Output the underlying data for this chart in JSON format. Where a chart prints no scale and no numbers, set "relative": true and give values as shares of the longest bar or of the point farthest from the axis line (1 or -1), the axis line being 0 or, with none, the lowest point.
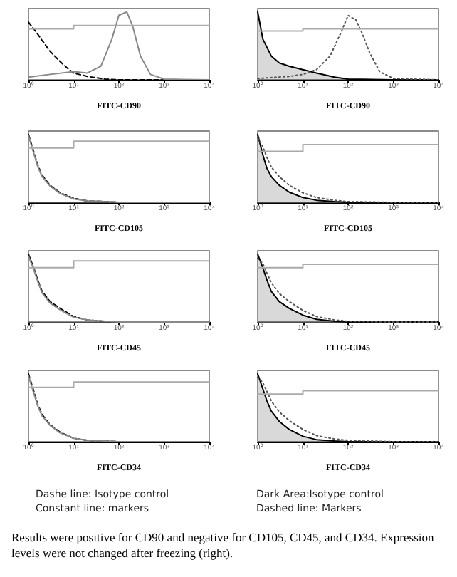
{
  "chart_data": [
    {
      "type": "line",
      "relative": true,
      "log": "x",
      "xlabel": "FITC-CD90",
      "xlim": [
        1,
        10000
      ],
      "xticks": [
        {
          "value": 1,
          "label": "10⁰"
        },
        {
          "value": 10,
          "label": "10¹"
        },
        {
          "value": 100,
          "label": "10²"
        },
        {
          "value": 1000,
          "label": "10³"
        },
        {
          "value": 10000,
          "label": "10⁴"
        }
      ],
      "series": [
        {
          "color": "#000000",
          "line_style": "dashed",
          "x": [
            1,
            1.5,
            2,
            3,
            5,
            7,
            10,
            20,
            50,
            100,
            1000,
            10000
          ],
          "values": [
            0.85,
            0.7,
            0.58,
            0.42,
            0.27,
            0.18,
            0.1,
            0.05,
            0.01,
            0,
            0,
            0
          ]
        },
        {
          "color": "#888888",
          "line_style": "solid",
          "x": [
            1,
            3,
            10,
            20,
            40,
            70,
            100,
            150,
            200,
            300,
            500,
            1000,
            10000
          ],
          "values": [
            0.04,
            0.08,
            0.12,
            0.1,
            0.2,
            0.6,
            0.95,
            1,
            0.8,
            0.35,
            0.08,
            0.01,
            0
          ]
        },
        {
          "color": "#aaaaaa",
          "line_style": "solid",
          "x": [
            1,
            10,
            10,
            10000
          ],
          "values": [
            0.75,
            0.75,
            0.8,
            0.8
          ]
        }
      ]
    },
    {
      "type": "line",
      "relative": true,
      "log": "x",
      "xlabel": "FITC-CD90",
      "xlim": [
        1,
        10000
      ],
      "xticks": [
        {
          "value": 1,
          "label": "10⁰"
        },
        {
          "value": 10,
          "label": "10¹"
        },
        {
          "value": 100,
          "label": "10²"
        },
        {
          "value": 1000,
          "label": "10³"
        },
        {
          "value": 10000,
          "label": "10⁴"
        }
      ],
      "series": [
        {
          "type": "area",
          "color": "#000000",
          "line_style": "solid",
          "x": [
            1,
            1.3,
            2,
            3,
            5,
            10,
            20,
            50,
            100,
            1000,
            10000
          ],
          "values": [
            1,
            0.6,
            0.35,
            0.25,
            0.2,
            0.15,
            0.1,
            0.04,
            0.01,
            0,
            0
          ]
        },
        {
          "color": "#555555",
          "line_style": "dotted",
          "x": [
            1,
            5,
            10,
            20,
            40,
            70,
            100,
            150,
            200,
            300,
            500,
            1000,
            10000
          ],
          "values": [
            0.02,
            0.05,
            0.08,
            0.15,
            0.35,
            0.7,
            0.95,
            0.88,
            0.7,
            0.4,
            0.12,
            0.02,
            0
          ]
        },
        {
          "color": "#aaaaaa",
          "line_style": "solid",
          "x": [
            1,
            10,
            10,
            10000
          ],
          "values": [
            0.72,
            0.72,
            0.75,
            0.75
          ]
        }
      ]
    },
    {
      "type": "line",
      "relative": true,
      "log": "x",
      "xlabel": "FITC-CD105",
      "xlim": [
        1,
        10000
      ],
      "xticks": [
        {
          "value": 1,
          "label": "10⁰"
        },
        {
          "value": 10,
          "label": "10¹"
        },
        {
          "value": 100,
          "label": "10²"
        },
        {
          "value": 1000,
          "label": "10³"
        },
        {
          "value": 10000,
          "label": "10⁴"
        }
      ],
      "series": [
        {
          "color": "#000000",
          "line_style": "dashed",
          "x": [
            1,
            1.3,
            1.6,
            2,
            3,
            5,
            10,
            20,
            50,
            100,
            1000,
            10000
          ],
          "values": [
            1,
            0.75,
            0.55,
            0.4,
            0.25,
            0.14,
            0.06,
            0.02,
            0.01,
            0,
            0,
            0
          ]
        },
        {
          "color": "#888888",
          "line_style": "solid",
          "x": [
            1,
            1.3,
            1.6,
            2,
            3,
            5,
            10,
            20,
            50,
            100,
            1000,
            10000
          ],
          "values": [
            0.98,
            0.73,
            0.53,
            0.38,
            0.24,
            0.13,
            0.05,
            0.02,
            0.01,
            0,
            0,
            0
          ]
        },
        {
          "color": "#aaaaaa",
          "line_style": "solid",
          "x": [
            1,
            10,
            10,
            10000
          ],
          "values": [
            0.8,
            0.8,
            0.9,
            0.9
          ]
        }
      ]
    },
    {
      "type": "line",
      "relative": true,
      "log": "x",
      "xlabel": "FITC-CD105",
      "xlim": [
        1,
        10000
      ],
      "xticks": [
        {
          "value": 1,
          "label": "10⁰"
        },
        {
          "value": 10,
          "label": "10¹"
        },
        {
          "value": 100,
          "label": "10²"
        },
        {
          "value": 1000,
          "label": "10³"
        },
        {
          "value": 10000,
          "label": "10⁴"
        }
      ],
      "series": [
        {
          "type": "area",
          "color": "#000000",
          "line_style": "solid",
          "x": [
            1,
            1.3,
            1.6,
            2,
            3,
            5,
            10,
            20,
            50,
            100,
            1000,
            10000
          ],
          "values": [
            1,
            0.7,
            0.5,
            0.38,
            0.25,
            0.15,
            0.07,
            0.03,
            0.01,
            0,
            0,
            0
          ]
        },
        {
          "color": "#555555",
          "line_style": "dotted",
          "x": [
            1,
            1.3,
            1.6,
            2,
            3,
            5,
            10,
            20,
            50,
            100,
            1000,
            10000
          ],
          "values": [
            0.95,
            0.82,
            0.66,
            0.52,
            0.38,
            0.25,
            0.14,
            0.07,
            0.03,
            0.01,
            0,
            0
          ]
        },
        {
          "color": "#aaaaaa",
          "line_style": "solid",
          "x": [
            1,
            10,
            10,
            10000
          ],
          "values": [
            0.75,
            0.75,
            0.85,
            0.85
          ]
        }
      ]
    },
    {
      "type": "line",
      "relative": true,
      "log": "x",
      "xlabel": "FITC-CD45",
      "xlim": [
        1,
        10000
      ],
      "xticks": [
        {
          "value": 1,
          "label": "10⁰"
        },
        {
          "value": 10,
          "label": "10¹"
        },
        {
          "value": 100,
          "label": "10²"
        },
        {
          "value": 1000,
          "label": "10³"
        },
        {
          "value": 10000,
          "label": "10⁴"
        }
      ],
      "series": [
        {
          "color": "#000000",
          "line_style": "dashed",
          "x": [
            1,
            1.3,
            1.6,
            2,
            3,
            5,
            10,
            20,
            50,
            100,
            1000,
            10000
          ],
          "values": [
            1,
            0.8,
            0.62,
            0.45,
            0.3,
            0.2,
            0.08,
            0.03,
            0.01,
            0,
            0,
            0
          ]
        },
        {
          "color": "#888888",
          "line_style": "solid",
          "x": [
            1,
            1.3,
            1.6,
            2,
            3,
            5,
            10,
            20,
            50,
            100,
            1000,
            10000
          ],
          "values": [
            0.97,
            0.78,
            0.6,
            0.43,
            0.28,
            0.18,
            0.07,
            0.03,
            0.01,
            0,
            0,
            0
          ]
        },
        {
          "color": "#aaaaaa",
          "line_style": "solid",
          "x": [
            1,
            10,
            10,
            10000
          ],
          "values": [
            0.8,
            0.8,
            0.9,
            0.9
          ]
        }
      ]
    },
    {
      "type": "line",
      "relative": true,
      "log": "x",
      "xlabel": "FITC-CD45",
      "xlim": [
        1,
        10000
      ],
      "xticks": [
        {
          "value": 1,
          "label": "10⁰"
        },
        {
          "value": 10,
          "label": "10¹"
        },
        {
          "value": 100,
          "label": "10²"
        },
        {
          "value": 1000,
          "label": "10³"
        },
        {
          "value": 10000,
          "label": "10⁴"
        }
      ],
      "series": [
        {
          "type": "area",
          "color": "#000000",
          "line_style": "solid",
          "x": [
            1,
            1.3,
            1.6,
            2,
            3,
            5,
            10,
            20,
            50,
            100,
            1000,
            10000
          ],
          "values": [
            1,
            0.8,
            0.62,
            0.45,
            0.3,
            0.2,
            0.1,
            0.04,
            0.01,
            0,
            0,
            0
          ]
        },
        {
          "color": "#555555",
          "line_style": "dotted",
          "x": [
            1,
            1.3,
            1.6,
            2,
            3,
            5,
            10,
            20,
            50,
            100,
            1000,
            10000
          ],
          "values": [
            0.94,
            0.86,
            0.72,
            0.58,
            0.42,
            0.3,
            0.17,
            0.08,
            0.03,
            0.01,
            0,
            0
          ]
        },
        {
          "color": "#aaaaaa",
          "line_style": "solid",
          "x": [
            1,
            10,
            10,
            10000
          ],
          "values": [
            0.8,
            0.8,
            0.85,
            0.85
          ]
        }
      ]
    },
    {
      "type": "line",
      "relative": true,
      "log": "x",
      "xlabel": "FITC-CD34",
      "xlim": [
        1,
        10000
      ],
      "xticks": [
        {
          "value": 1,
          "label": "10⁰"
        },
        {
          "value": 10,
          "label": "10¹"
        },
        {
          "value": 100,
          "label": "10²"
        },
        {
          "value": 1000,
          "label": "10³"
        },
        {
          "value": 10000,
          "label": "10⁴"
        }
      ],
      "annotations": [
        "Dashe line: Isotype control",
        "Constant line: markers"
      ],
      "series": [
        {
          "color": "#000000",
          "line_style": "dashed",
          "x": [
            1,
            1.3,
            1.6,
            2,
            3,
            5,
            10,
            20,
            50,
            100,
            1000,
            10000
          ],
          "values": [
            1,
            0.75,
            0.55,
            0.4,
            0.25,
            0.14,
            0.05,
            0.02,
            0.01,
            0,
            0,
            0
          ]
        },
        {
          "color": "#888888",
          "line_style": "solid",
          "x": [
            1,
            1.3,
            1.6,
            2,
            3,
            5,
            10,
            20,
            50,
            100,
            1000,
            10000
          ],
          "values": [
            0.97,
            0.72,
            0.53,
            0.38,
            0.24,
            0.13,
            0.05,
            0.02,
            0.01,
            0,
            0,
            0
          ]
        },
        {
          "color": "#aaaaaa",
          "line_style": "solid",
          "x": [
            1,
            10,
            10,
            10000
          ],
          "values": [
            0.8,
            0.8,
            0.88,
            0.88
          ]
        }
      ]
    },
    {
      "type": "line",
      "relative": true,
      "log": "x",
      "xlabel": "FITC-CD34",
      "xlim": [
        1,
        10000
      ],
      "xticks": [
        {
          "value": 1,
          "label": "10⁰"
        },
        {
          "value": 10,
          "label": "10¹"
        },
        {
          "value": 100,
          "label": "10²"
        },
        {
          "value": 1000,
          "label": "10³"
        },
        {
          "value": 10000,
          "label": "10⁴"
        }
      ],
      "annotations": [
        "Dark Area:Isotype control",
        "Dashed line: Markers",
        "Results were positive for CD90 and negative for CD105, CD45, and CD34. Expression levels were not changed after freezing (right)."
      ],
      "series": [
        {
          "type": "area",
          "color": "#000000",
          "line_style": "solid",
          "x": [
            1,
            1.3,
            1.6,
            2,
            3,
            5,
            10,
            20,
            50,
            100,
            1000,
            10000
          ],
          "values": [
            1,
            0.78,
            0.6,
            0.45,
            0.3,
            0.18,
            0.08,
            0.03,
            0.01,
            0,
            0,
            0
          ]
        },
        {
          "color": "#555555",
          "line_style": "dotted",
          "x": [
            1,
            1.3,
            1.6,
            2,
            3,
            5,
            10,
            20,
            50,
            100,
            1000,
            10000
          ],
          "values": [
            0.95,
            0.87,
            0.74,
            0.6,
            0.44,
            0.31,
            0.18,
            0.09,
            0.04,
            0.02,
            0,
            0
          ]
        },
        {
          "color": "#aaaaaa",
          "line_style": "solid",
          "x": [
            1,
            10,
            10,
            10000
          ],
          "values": [
            0.7,
            0.7,
            0.75,
            0.75
          ]
        }
      ]
    }
  ]
}
